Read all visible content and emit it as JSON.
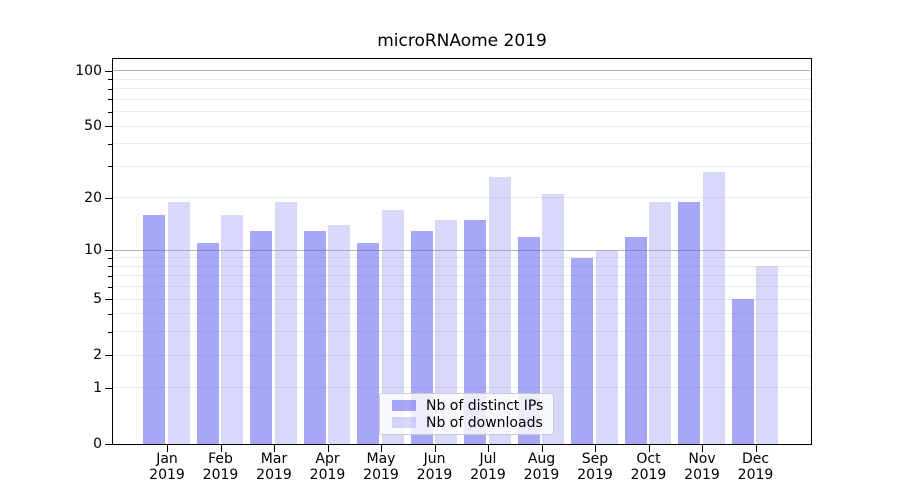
{
  "title": "microRNAome 2019",
  "chart_data": {
    "type": "bar",
    "title": "microRNAome 2019",
    "xlabel": "",
    "ylabel": "",
    "categories": [
      "Jan 2019",
      "Feb 2019",
      "Mar 2019",
      "Apr 2019",
      "May 2019",
      "Jun 2019",
      "Jul 2019",
      "Aug 2019",
      "Sep 2019",
      "Oct 2019",
      "Nov 2019",
      "Dec 2019"
    ],
    "month_labels": [
      "Jan",
      "Feb",
      "Mar",
      "Apr",
      "May",
      "Jun",
      "Jul",
      "Aug",
      "Sep",
      "Oct",
      "Nov",
      "Dec"
    ],
    "year_label": "2019",
    "series": [
      {
        "name": "Nb of distinct IPs",
        "values": [
          16,
          11,
          13,
          13,
          11,
          13,
          15,
          12,
          9,
          12,
          19,
          5
        ]
      },
      {
        "name": "Nb of downloads",
        "values": [
          19,
          16,
          19,
          14,
          17,
          15,
          26,
          21,
          10,
          19,
          28,
          8
        ]
      }
    ],
    "yscale": "log1p",
    "ylim": [
      0,
      116
    ],
    "yticks_labeled": [
      0,
      1,
      2,
      5,
      10,
      20,
      50,
      100
    ],
    "yticks_minor": [
      3,
      4,
      6,
      7,
      8,
      9,
      30,
      40,
      60,
      70,
      80,
      90
    ],
    "grid": true,
    "grid_major_at": [
      10,
      100
    ],
    "legend_position": "lower center"
  },
  "legend": {
    "items": [
      {
        "label": "Nb of distinct IPs"
      },
      {
        "label": "Nb of downloads"
      }
    ]
  },
  "colors": {
    "ips_bar": "rgba(94,94,242,0.55)",
    "downloads_bar": "rgba(150,150,245,0.37)",
    "grid_major": "#b3b3b3",
    "grid_minor": "#ebebeb",
    "axis": "#000000",
    "background": "#ffffff"
  }
}
